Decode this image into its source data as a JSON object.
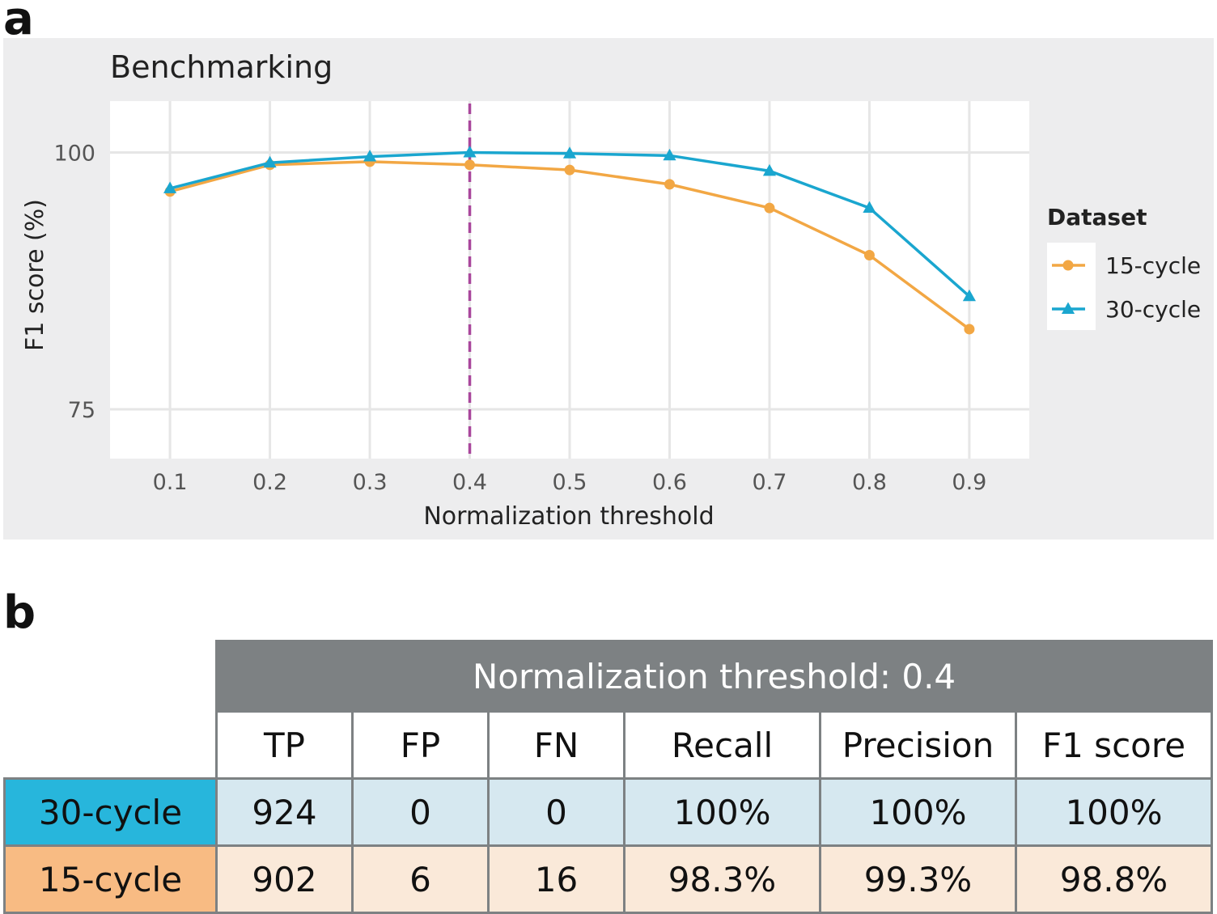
{
  "panel_a_label": "a",
  "panel_b_label": "b",
  "chart_data": {
    "type": "line",
    "title": "Benchmarking",
    "xlabel": "Normalization threshold",
    "ylabel": "F1 score (%)",
    "x": [
      0.1,
      0.2,
      0.3,
      0.4,
      0.5,
      0.6,
      0.7,
      0.8,
      0.9
    ],
    "x_tick_labels": [
      "0.1",
      "0.2",
      "0.3",
      "0.4",
      "0.5",
      "0.6",
      "0.7",
      "0.8",
      "0.9"
    ],
    "y_ticks": [
      75,
      100
    ],
    "y_tick_labels": [
      "75",
      "100"
    ],
    "xlim": [
      0.04,
      0.96
    ],
    "ylim": [
      70.2,
      105
    ],
    "grid": true,
    "vline": {
      "x": 0.4,
      "color": "#a9479c",
      "style": "dashed"
    },
    "legend": {
      "title": "Dataset",
      "position": "right"
    },
    "series": [
      {
        "name": "15-cycle",
        "color": "#f2a744",
        "marker": "circle",
        "values": [
          96.2,
          98.8,
          99.1,
          98.8,
          98.3,
          96.9,
          94.6,
          90.0,
          82.8
        ]
      },
      {
        "name": "30-cycle",
        "color": "#1aa6cf",
        "marker": "triangle",
        "values": [
          96.5,
          99.0,
          99.6,
          100.0,
          99.9,
          99.7,
          98.2,
          94.6,
          86.0
        ]
      }
    ]
  },
  "table": {
    "title": "Normalization threshold: 0.4",
    "columns": [
      "TP",
      "FP",
      "FN",
      "Recall",
      "Precision",
      "F1 score"
    ],
    "rows": [
      {
        "label": "30-cycle",
        "values": [
          "924",
          "0",
          "0",
          "100%",
          "100%",
          "100%"
        ]
      },
      {
        "label": "15-cycle",
        "values": [
          "902",
          "6",
          "16",
          "98.3%",
          "99.3%",
          "98.8%"
        ]
      }
    ]
  }
}
